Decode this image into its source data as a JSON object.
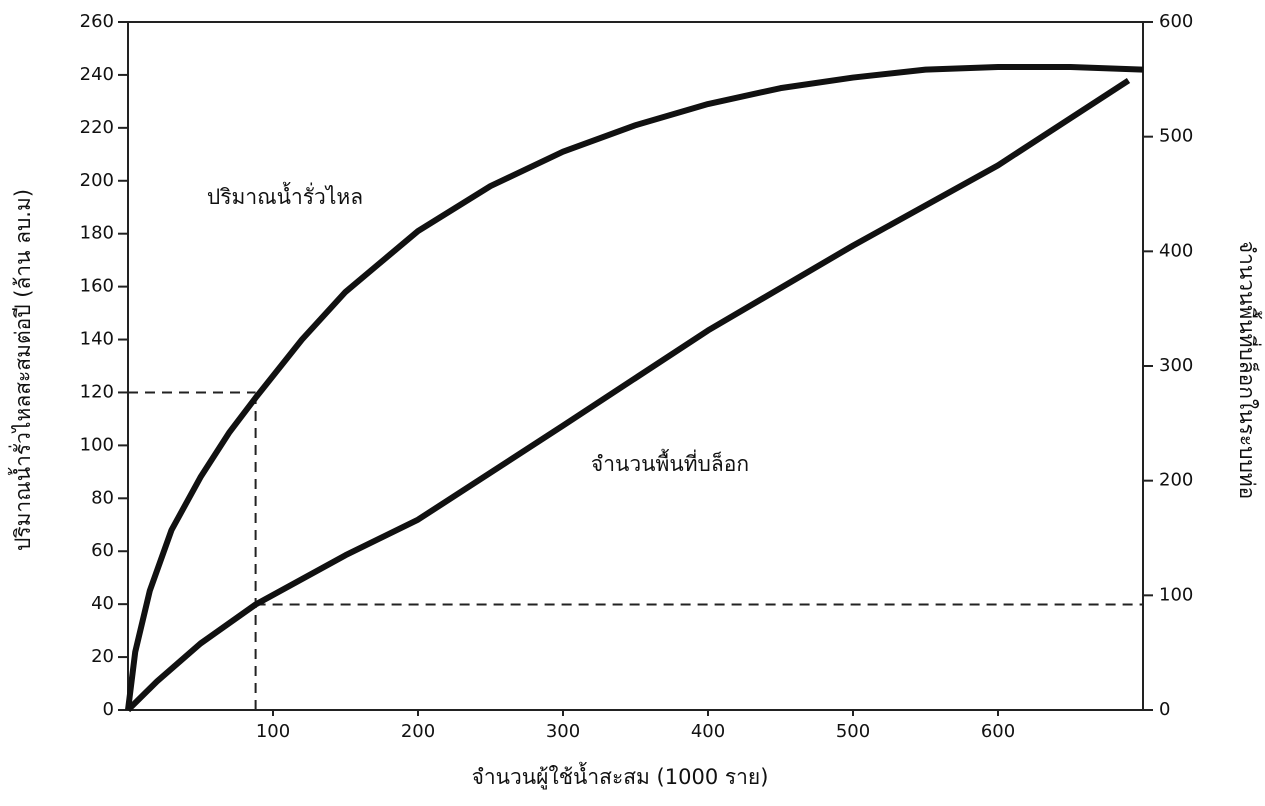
{
  "chart_data": {
    "type": "line",
    "xlabel": "จำนวนผู้ใช้น้ำสะสม (1000 ราย)",
    "ylabel": "ปริมาณน้ำรั่วไหลสะสมต่อปี (ล้าน ลบ.ม)",
    "y2label": "จำนวนพื้นที่บล็อกในระบบท่อ",
    "xlim": [
      0,
      700
    ],
    "xticks": [
      100,
      200,
      300,
      400,
      500,
      600
    ],
    "ylim": [
      0,
      260
    ],
    "yticks": [
      0,
      20,
      40,
      60,
      80,
      100,
      120,
      140,
      160,
      180,
      200,
      220,
      240,
      260
    ],
    "y2lim": [
      0,
      600
    ],
    "y2ticks": [
      0,
      100,
      200,
      300,
      400,
      500,
      600
    ],
    "series": [
      {
        "name": "ปริมาณน้ำรั่วไหล",
        "color": "#111111",
        "x": [
          0,
          5,
          15,
          30,
          50,
          70,
          88,
          120,
          150,
          200,
          250,
          300,
          350,
          400,
          450,
          500,
          550,
          600,
          650,
          700
        ],
        "values": [
          0,
          22,
          45,
          68,
          88,
          105,
          118,
          140,
          158,
          181,
          198,
          211,
          221,
          229,
          235,
          239,
          242,
          243,
          243,
          242
        ]
      },
      {
        "name": "จำนวนพื้นที่บล็อก",
        "color": "#111111",
        "axis": "y2",
        "x": [
          0,
          20,
          50,
          88,
          150,
          200,
          300,
          400,
          500,
          600,
          690
        ],
        "values": [
          0,
          25,
          58,
          92,
          135,
          166,
          248,
          331,
          405,
          475,
          549
        ]
      }
    ],
    "guides": {
      "x": 88,
      "y": 120,
      "y2": 92
    }
  }
}
